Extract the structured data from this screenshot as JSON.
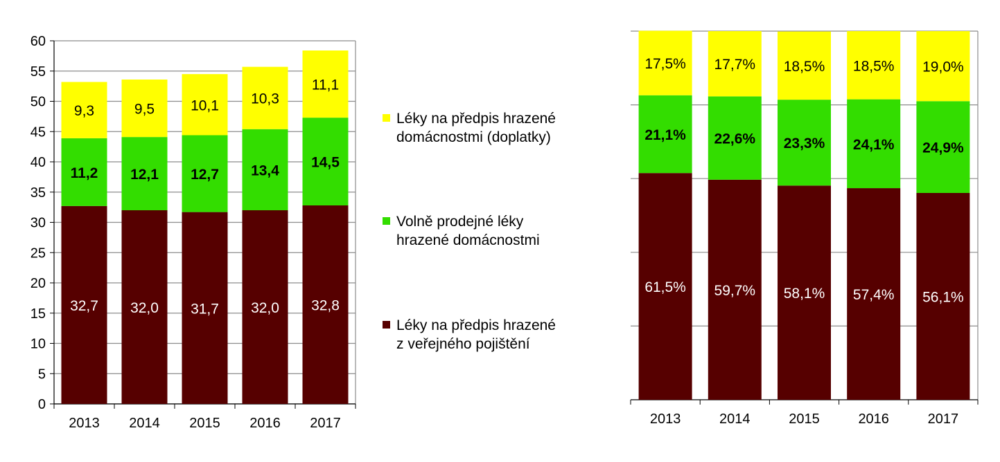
{
  "chart_data": [
    {
      "type": "bar",
      "stacked": true,
      "categories": [
        "2013",
        "2014",
        "2015",
        "2016",
        "2017"
      ],
      "ylim": [
        0,
        60
      ],
      "yticks": [
        "0",
        "5",
        "10",
        "15",
        "20",
        "25",
        "30",
        "35",
        "40",
        "45",
        "50",
        "55",
        "60"
      ],
      "grid": true,
      "series": [
        {
          "name": "Léky na předpis hrazené z veřejného pojištění",
          "color": "#560000",
          "label_color": "#ffffff",
          "label_bold": false,
          "values": [
            32.7,
            32.0,
            31.7,
            32.0,
            32.8
          ],
          "labels": [
            "32,7",
            "32,0",
            "31,7",
            "32,0",
            "32,8"
          ]
        },
        {
          "name": "Volně prodejné léky hrazené domácnostmi",
          "color": "#33dd00",
          "label_color": "#000000",
          "label_bold": true,
          "values": [
            11.2,
            12.1,
            12.7,
            13.4,
            14.5
          ],
          "labels": [
            "11,2",
            "12,1",
            "12,7",
            "13,4",
            "14,5"
          ]
        },
        {
          "name": "Léky na předpis hrazené domácnostmi (doplatky)",
          "color": "#ffff00",
          "label_color": "#000000",
          "label_bold": false,
          "values": [
            9.3,
            9.5,
            10.1,
            10.3,
            11.1
          ],
          "labels": [
            "9,3",
            "9,5",
            "10,1",
            "10,3",
            "11,1"
          ]
        }
      ]
    },
    {
      "type": "bar",
      "stacked": true,
      "percent": true,
      "categories": [
        "2013",
        "2014",
        "2015",
        "2016",
        "2017"
      ],
      "ylim": [
        0,
        100
      ],
      "grid": true,
      "series": [
        {
          "color": "#560000",
          "label_color": "#ffffff",
          "label_bold": false,
          "values": [
            61.5,
            59.7,
            58.1,
            57.4,
            56.1
          ],
          "labels": [
            "61,5%",
            "59,7%",
            "58,1%",
            "57,4%",
            "56,1%"
          ]
        },
        {
          "color": "#33dd00",
          "label_color": "#000000",
          "label_bold": true,
          "values": [
            21.1,
            22.6,
            23.3,
            24.1,
            24.9
          ],
          "labels": [
            "21,1%",
            "22,6%",
            "23,3%",
            "24,1%",
            "24,9%"
          ]
        },
        {
          "color": "#ffff00",
          "label_color": "#000000",
          "label_bold": false,
          "values": [
            17.5,
            17.7,
            18.5,
            18.5,
            19.0
          ],
          "labels": [
            "17,5%",
            "17,7%",
            "18,5%",
            "18,5%",
            "19,0%"
          ]
        }
      ]
    }
  ],
  "legend": {
    "items": [
      {
        "color": "#ffff00",
        "line1": "Léky na předpis hrazené",
        "line2": "domácnostmi (doplatky)"
      },
      {
        "color": "#33dd00",
        "line1": "Volně prodejné léky",
        "line2": "hrazené domácnostmi"
      },
      {
        "color": "#560000",
        "line1": "Léky na předpis hrazené",
        "line2": "z veřejného pojištění"
      }
    ]
  }
}
